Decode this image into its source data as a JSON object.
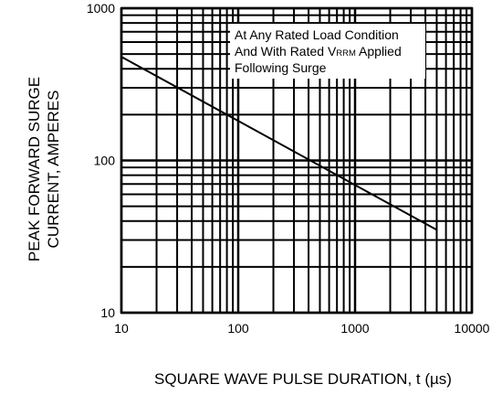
{
  "chart_data": {
    "type": "line",
    "title": "",
    "x_scale": "log",
    "y_scale": "log",
    "xlim": [
      10,
      10000
    ],
    "ylim": [
      10,
      1000
    ],
    "x_ticks": [
      10,
      100,
      1000,
      10000
    ],
    "x_tick_labels": [
      "10",
      "100",
      "1000",
      "10000"
    ],
    "y_ticks": [
      10,
      100,
      1000
    ],
    "y_tick_labels": [
      "10",
      "100",
      "1000"
    ],
    "xlabel": "SQUARE WAVE PULSE DURATION, t (µs)",
    "ylabel_line1": "PEAK FORWARD SURGE",
    "ylabel_line2": "CURRENT, AMPERES",
    "grid": true,
    "series": [
      {
        "x": [
          10,
          5000
        ],
        "y": [
          480,
          35
        ]
      }
    ],
    "annotation": {
      "line1": "At Any Rated Load Condition",
      "line2_pre": "And With Rated V",
      "line2_sub": "RRM",
      "line2_post": " Applied",
      "line3": "Following Surge"
    },
    "colors": {
      "line": "#000000",
      "grid": "#000000",
      "background": "#ffffff"
    }
  }
}
